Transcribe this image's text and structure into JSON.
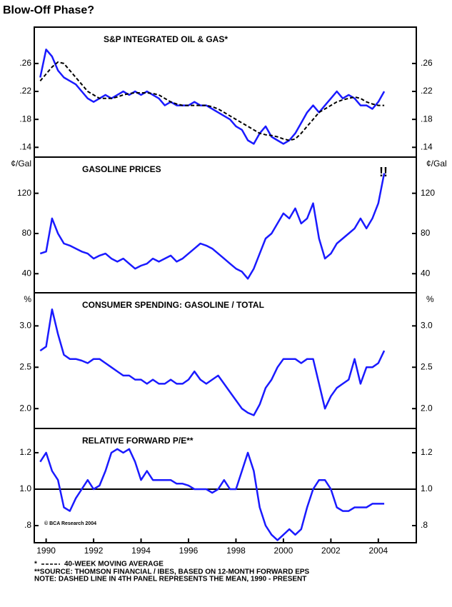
{
  "page_title": "Blow-Off Phase?",
  "chart_data": [
    {
      "type": "line",
      "title": "S&P INTEGRATED OIL & GAS*",
      "footnote_marker": "*",
      "xlim": [
        1989.5,
        2005.6
      ],
      "ylim": [
        0.126,
        0.312
      ],
      "yticks": [
        {
          "value": 0.14,
          "label": ".14"
        },
        {
          "value": 0.18,
          "label": ".18"
        },
        {
          "value": 0.22,
          "label": ".22"
        },
        {
          "value": 0.26,
          "label": ".26"
        }
      ],
      "x": [
        1989.75,
        1990,
        1990.25,
        1990.5,
        1990.75,
        1991,
        1991.25,
        1991.5,
        1991.75,
        1992,
        1992.25,
        1992.5,
        1992.75,
        1993,
        1993.25,
        1993.5,
        1993.75,
        1994,
        1994.25,
        1994.5,
        1994.75,
        1995,
        1995.25,
        1995.5,
        1995.75,
        1996,
        1996.25,
        1996.5,
        1996.75,
        1997,
        1997.25,
        1997.5,
        1997.75,
        1998,
        1998.25,
        1998.5,
        1998.75,
        1999,
        1999.25,
        1999.5,
        1999.75,
        2000,
        2000.25,
        2000.5,
        2000.75,
        2001,
        2001.25,
        2001.5,
        2001.75,
        2002,
        2002.25,
        2002.5,
        2002.75,
        2003,
        2003.25,
        2003.5,
        2003.75,
        2004,
        2004.25
      ],
      "series": [
        {
          "color": "#1a1aff",
          "values": [
            0.24,
            0.28,
            0.27,
            0.25,
            0.24,
            0.235,
            0.23,
            0.22,
            0.21,
            0.205,
            0.21,
            0.215,
            0.21,
            0.215,
            0.22,
            0.215,
            0.22,
            0.215,
            0.22,
            0.215,
            0.21,
            0.2,
            0.205,
            0.2,
            0.2,
            0.2,
            0.205,
            0.2,
            0.2,
            0.195,
            0.19,
            0.185,
            0.18,
            0.17,
            0.165,
            0.15,
            0.145,
            0.16,
            0.17,
            0.155,
            0.15,
            0.145,
            0.15,
            0.16,
            0.175,
            0.19,
            0.2,
            0.19,
            0.2,
            0.21,
            0.22,
            0.21,
            0.215,
            0.21,
            0.2,
            0.2,
            0.195,
            0.205,
            0.22
          ]
        },
        {
          "name": "40-WEEK MOVING AVERAGE",
          "color": "#000000",
          "line_style": "dashed",
          "values": [
            0.235,
            0.245,
            0.255,
            0.262,
            0.26,
            0.25,
            0.24,
            0.23,
            0.22,
            0.215,
            0.21,
            0.21,
            0.21,
            0.212,
            0.215,
            0.217,
            0.218,
            0.218,
            0.218,
            0.217,
            0.215,
            0.21,
            0.205,
            0.202,
            0.2,
            0.2,
            0.2,
            0.2,
            0.2,
            0.198,
            0.195,
            0.19,
            0.185,
            0.18,
            0.175,
            0.17,
            0.165,
            0.16,
            0.158,
            0.157,
            0.155,
            0.152,
            0.15,
            0.152,
            0.16,
            0.17,
            0.18,
            0.19,
            0.195,
            0.2,
            0.205,
            0.208,
            0.21,
            0.212,
            0.21,
            0.205,
            0.202,
            0.2,
            0.2
          ]
        }
      ]
    },
    {
      "type": "line",
      "title": "GASOLINE PRICES",
      "unit_label": "¢/Gal",
      "annotation": "!!",
      "xlim": [
        1989.5,
        2005.6
      ],
      "ylim": [
        21,
        156
      ],
      "yticks": [
        40,
        80,
        120
      ],
      "x": [
        1989.75,
        1990,
        1990.25,
        1990.5,
        1990.75,
        1991,
        1991.25,
        1991.5,
        1991.75,
        1992,
        1992.25,
        1992.5,
        1992.75,
        1993,
        1993.25,
        1993.5,
        1993.75,
        1994,
        1994.25,
        1994.5,
        1994.75,
        1995,
        1995.25,
        1995.5,
        1995.75,
        1996,
        1996.25,
        1996.5,
        1996.75,
        1997,
        1997.25,
        1997.5,
        1997.75,
        1998,
        1998.25,
        1998.5,
        1998.75,
        1999,
        1999.25,
        1999.5,
        1999.75,
        2000,
        2000.25,
        2000.5,
        2000.75,
        2001,
        2001.25,
        2001.5,
        2001.75,
        2002,
        2002.25,
        2002.5,
        2002.75,
        2003,
        2003.25,
        2003.5,
        2003.75,
        2004,
        2004.25
      ],
      "series": [
        {
          "color": "#1a1aff",
          "values": [
            60,
            62,
            95,
            80,
            70,
            68,
            65,
            62,
            60,
            55,
            58,
            60,
            55,
            52,
            55,
            50,
            45,
            48,
            50,
            55,
            52,
            55,
            58,
            52,
            55,
            60,
            65,
            70,
            68,
            65,
            60,
            55,
            50,
            45,
            42,
            35,
            45,
            60,
            75,
            80,
            90,
            100,
            95,
            105,
            90,
            95,
            110,
            75,
            55,
            60,
            70,
            75,
            80,
            85,
            95,
            85,
            95,
            110,
            140
          ]
        }
      ]
    },
    {
      "type": "line",
      "title": "CONSUMER SPENDING: GASOLINE / TOTAL",
      "unit_label": "%",
      "xlim": [
        1989.5,
        2005.6
      ],
      "ylim": [
        1.76,
        3.4
      ],
      "yticks": [
        {
          "value": 2.0,
          "label": "2.0"
        },
        {
          "value": 2.5,
          "label": "2.5"
        },
        {
          "value": 3.0,
          "label": "3.0"
        }
      ],
      "x": [
        1989.75,
        1990,
        1990.25,
        1990.5,
        1990.75,
        1991,
        1991.25,
        1991.5,
        1991.75,
        1992,
        1992.25,
        1992.5,
        1992.75,
        1993,
        1993.25,
        1993.5,
        1993.75,
        1994,
        1994.25,
        1994.5,
        1994.75,
        1995,
        1995.25,
        1995.5,
        1995.75,
        1996,
        1996.25,
        1996.5,
        1996.75,
        1997,
        1997.25,
        1997.5,
        1997.75,
        1998,
        1998.25,
        1998.5,
        1998.75,
        1999,
        1999.25,
        1999.5,
        1999.75,
        2000,
        2000.25,
        2000.5,
        2000.75,
        2001,
        2001.25,
        2001.5,
        2001.75,
        2002,
        2002.25,
        2002.5,
        2002.75,
        2003,
        2003.25,
        2003.5,
        2003.75,
        2004,
        2004.25
      ],
      "series": [
        {
          "color": "#1a1aff",
          "values": [
            2.7,
            2.75,
            3.2,
            2.9,
            2.65,
            2.6,
            2.6,
            2.58,
            2.55,
            2.6,
            2.6,
            2.55,
            2.5,
            2.45,
            2.4,
            2.4,
            2.35,
            2.35,
            2.3,
            2.35,
            2.3,
            2.3,
            2.35,
            2.3,
            2.3,
            2.35,
            2.45,
            2.35,
            2.3,
            2.35,
            2.4,
            2.3,
            2.2,
            2.1,
            2.0,
            1.95,
            1.92,
            2.05,
            2.25,
            2.35,
            2.5,
            2.6,
            2.6,
            2.6,
            2.55,
            2.6,
            2.6,
            2.3,
            2.0,
            2.15,
            2.25,
            2.3,
            2.35,
            2.6,
            2.3,
            2.5,
            2.5,
            2.55,
            2.7
          ]
        }
      ]
    },
    {
      "type": "line",
      "title": "RELATIVE FORWARD P/E**",
      "copyright": "© BCA Research 2004",
      "mean": 1.0,
      "xlim": [
        1989.5,
        2005.6
      ],
      "ylim": [
        0.706,
        1.333
      ],
      "yticks": [
        {
          "value": 0.8,
          "label": ".8"
        },
        {
          "value": 1.0,
          "label": "1.0"
        },
        {
          "value": 1.2,
          "label": "1.2"
        }
      ],
      "xticks": [
        1990,
        1992,
        1994,
        1996,
        1998,
        2000,
        2002,
        2004
      ],
      "x": [
        1989.75,
        1990,
        1990.25,
        1990.5,
        1990.75,
        1991,
        1991.25,
        1991.5,
        1991.75,
        1992,
        1992.25,
        1992.5,
        1992.75,
        1993,
        1993.25,
        1993.5,
        1993.75,
        1994,
        1994.25,
        1994.5,
        1994.75,
        1995,
        1995.25,
        1995.5,
        1995.75,
        1996,
        1996.25,
        1996.5,
        1996.75,
        1997,
        1997.25,
        1997.5,
        1997.75,
        1998,
        1998.25,
        1998.5,
        1998.75,
        1999,
        1999.25,
        1999.5,
        1999.75,
        2000,
        2000.25,
        2000.5,
        2000.75,
        2001,
        2001.25,
        2001.5,
        2001.75,
        2002,
        2002.25,
        2002.5,
        2002.75,
        2003,
        2003.25,
        2003.5,
        2003.75,
        2004,
        2004.25
      ],
      "series": [
        {
          "color": "#1a1aff",
          "values": [
            1.15,
            1.2,
            1.1,
            1.05,
            0.9,
            0.88,
            0.95,
            1.0,
            1.05,
            1.0,
            1.02,
            1.1,
            1.2,
            1.22,
            1.2,
            1.22,
            1.15,
            1.05,
            1.1,
            1.05,
            1.05,
            1.05,
            1.05,
            1.03,
            1.03,
            1.02,
            1.0,
            1.0,
            1.0,
            0.98,
            1.0,
            1.05,
            1.0,
            1.0,
            1.1,
            1.2,
            1.1,
            0.9,
            0.8,
            0.75,
            0.72,
            0.75,
            0.78,
            0.75,
            0.78,
            0.9,
            1.0,
            1.05,
            1.05,
            1.0,
            0.9,
            0.88,
            0.88,
            0.9,
            0.9,
            0.9,
            0.92,
            0.92,
            0.92
          ]
        }
      ]
    }
  ],
  "footnotes": [
    "**SOURCE: THOMSON FINANCIAL / IBES, BASED ON 12-MONTH FORWARD EPS",
    "NOTE: DASHED LINE IN 4TH PANEL REPRESENTS THE MEAN, 1990 - PRESENT"
  ]
}
